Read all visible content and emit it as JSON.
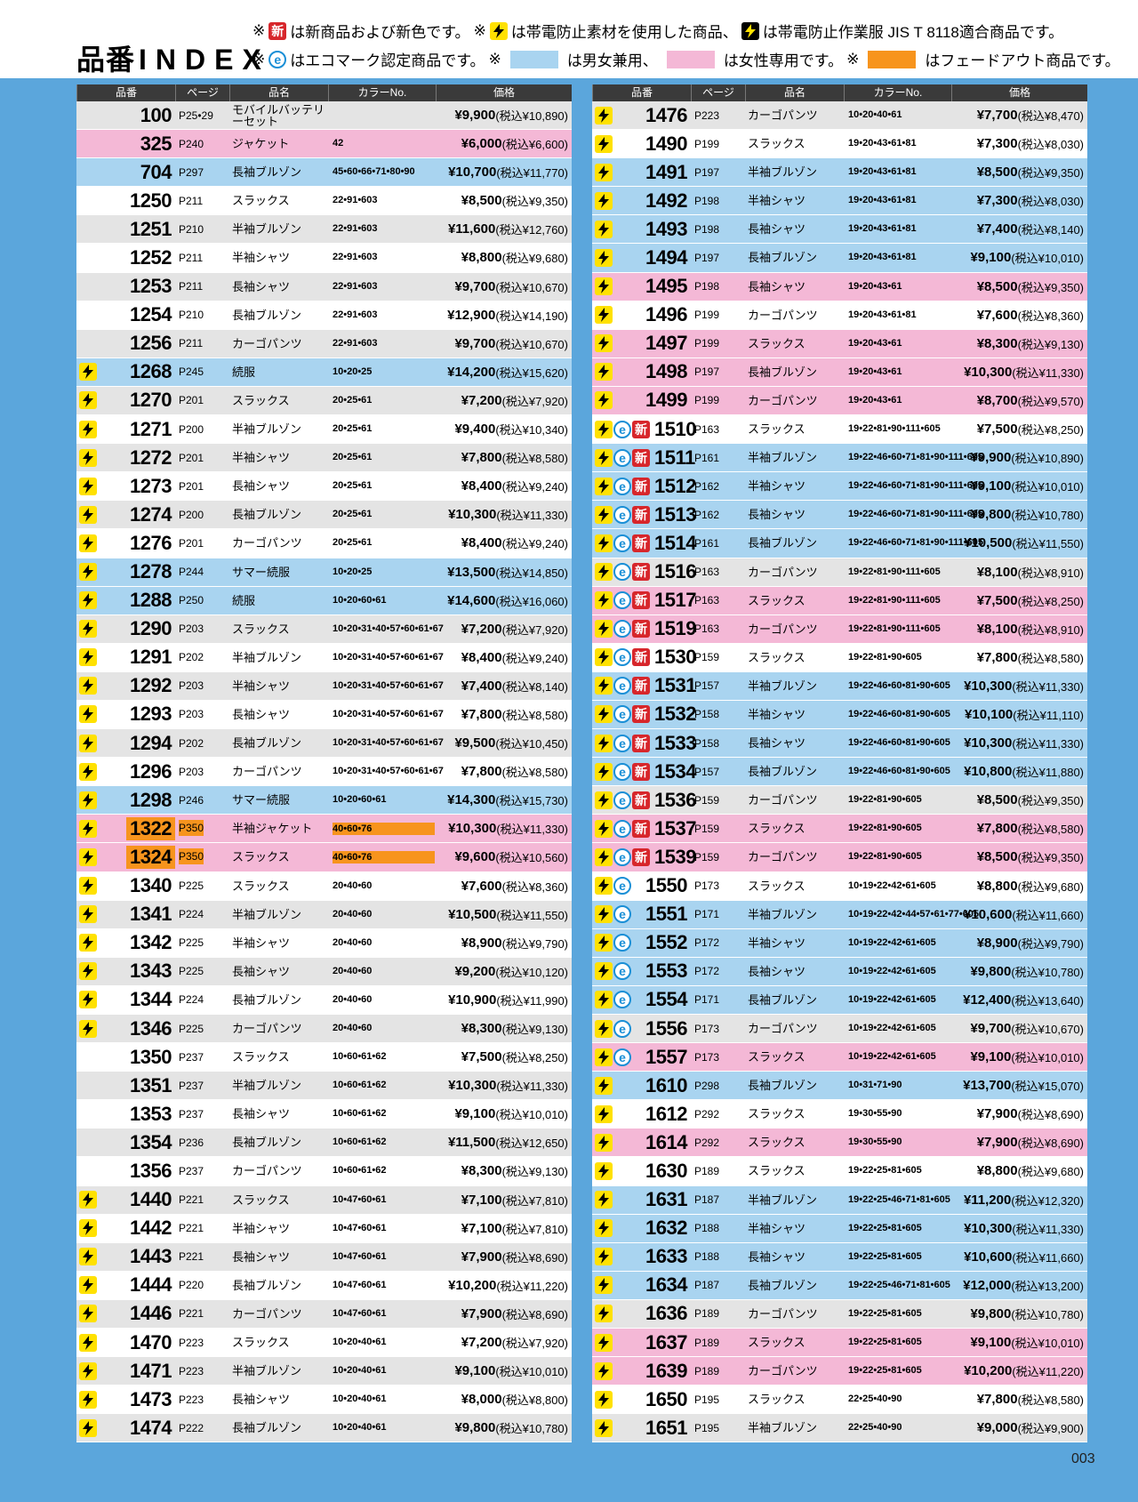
{
  "header": {
    "title_ja": "品番",
    "title_en": "INDEX",
    "new_mark": "新",
    "notes1": [
      "※",
      "は新商品および新色です。",
      "※",
      "は帯電防止素材を使用した商品、",
      "は帯電防止作業服 JIS T 8118適合商品です。"
    ],
    "notes2": [
      "※",
      "はエコマーク認定商品です。",
      "※",
      "は男女兼用、",
      "は女性専用です。",
      "※",
      "はフェードアウト商品です。"
    ]
  },
  "columns": [
    "品番",
    "ページ",
    "品名",
    "カラーNo.",
    "価格"
  ],
  "table_left": {
    "rows": [
      [
        "100",
        "P25•29",
        "モバイルバッテリーセット",
        null,
        "¥9,900",
        "(税込¥10,890)",
        "plain",
        ""
      ],
      [
        "325",
        "P240",
        "ジャケット",
        "42",
        "¥6,000",
        "(税込¥6,600)",
        "pink",
        ""
      ],
      [
        "704",
        "P297",
        "長袖ブルゾン",
        "45•60•66•71•80•90",
        "¥10,700",
        "(税込¥11,770)",
        "blue",
        ""
      ],
      [
        "1250",
        "P211",
        "スラックス",
        "22•91•603",
        "¥8,500",
        "(税込¥9,350)",
        "plain",
        ""
      ],
      [
        "1251",
        "P210",
        "半袖ブルゾン",
        "22•91•603",
        "¥11,600",
        "(税込¥12,760)",
        "plain",
        ""
      ],
      [
        "1252",
        "P211",
        "半袖シャツ",
        "22•91•603",
        "¥8,800",
        "(税込¥9,680)",
        "plain",
        ""
      ],
      [
        "1253",
        "P211",
        "長袖シャツ",
        "22•91•603",
        "¥9,700",
        "(税込¥10,670)",
        "plain",
        ""
      ],
      [
        "1254",
        "P210",
        "長袖ブルゾン",
        "22•91•603",
        "¥12,900",
        "(税込¥14,190)",
        "plain",
        ""
      ],
      [
        "1256",
        "P211",
        "カーゴパンツ",
        "22•91•603",
        "¥9,700",
        "(税込¥10,670)",
        "plain",
        ""
      ],
      [
        "1268",
        "P245",
        "続服",
        "10•20•25",
        "¥14,200",
        "(税込¥15,620)",
        "blue",
        "b"
      ],
      [
        "1270",
        "P201",
        "スラックス",
        "20•25•61",
        "¥7,200",
        "(税込¥7,920)",
        "plain",
        "b"
      ],
      [
        "1271",
        "P200",
        "半袖ブルゾン",
        "20•25•61",
        "¥9,400",
        "(税込¥10,340)",
        "plain",
        "b"
      ],
      [
        "1272",
        "P201",
        "半袖シャツ",
        "20•25•61",
        "¥7,800",
        "(税込¥8,580)",
        "plain",
        "b"
      ],
      [
        "1273",
        "P201",
        "長袖シャツ",
        "20•25•61",
        "¥8,400",
        "(税込¥9,240)",
        "plain",
        "b"
      ],
      [
        "1274",
        "P200",
        "長袖ブルゾン",
        "20•25•61",
        "¥10,300",
        "(税込¥11,330)",
        "plain",
        "b"
      ],
      [
        "1276",
        "P201",
        "カーゴパンツ",
        "20•25•61",
        "¥8,400",
        "(税込¥9,240)",
        "plain",
        "b"
      ],
      [
        "1278",
        "P244",
        "サマー続服",
        "10•20•25",
        "¥13,500",
        "(税込¥14,850)",
        "blue",
        "b"
      ],
      [
        "1288",
        "P250",
        "続服",
        "10•20•60•61",
        "¥14,600",
        "(税込¥16,060)",
        "blue",
        "b"
      ],
      [
        "1290",
        "P203",
        "スラックス",
        "10•20•31•40•57•60•61•67",
        "¥7,200",
        "(税込¥7,920)",
        "plain",
        "b"
      ],
      [
        "1291",
        "P202",
        "半袖ブルゾン",
        "10•20•31•40•57•60•61•67",
        "¥8,400",
        "(税込¥9,240)",
        "plain",
        "b"
      ],
      [
        "1292",
        "P203",
        "半袖シャツ",
        "10•20•31•40•57•60•61•67",
        "¥7,400",
        "(税込¥8,140)",
        "plain",
        "b"
      ],
      [
        "1293",
        "P203",
        "長袖シャツ",
        "10•20•31•40•57•60•61•67",
        "¥7,800",
        "(税込¥8,580)",
        "plain",
        "b"
      ],
      [
        "1294",
        "P202",
        "長袖ブルゾン",
        "10•20•31•40•57•60•61•67",
        "¥9,500",
        "(税込¥10,450)",
        "plain",
        "b"
      ],
      [
        "1296",
        "P203",
        "カーゴパンツ",
        "10•20•31•40•57•60•61•67",
        "¥7,800",
        "(税込¥8,580)",
        "plain",
        "b"
      ],
      [
        "1298",
        "P246",
        "サマー続服",
        "10•20•60•61",
        "¥14,300",
        "(税込¥15,730)",
        "blue",
        "b"
      ],
      [
        "1322",
        "P350",
        "半袖ジャケット",
        "40•60•76",
        "¥10,300",
        "(税込¥11,330)",
        "fade",
        "b"
      ],
      [
        "1324",
        "P350",
        "スラックス",
        "40•60•76",
        "¥9,600",
        "(税込¥10,560)",
        "fade",
        "b"
      ],
      [
        "1340",
        "P225",
        "スラックス",
        "20•40•60",
        "¥7,600",
        "(税込¥8,360)",
        "plain",
        "b"
      ],
      [
        "1341",
        "P224",
        "半袖ブルゾン",
        "20•40•60",
        "¥10,500",
        "(税込¥11,550)",
        "plain",
        "b"
      ],
      [
        "1342",
        "P225",
        "半袖シャツ",
        "20•40•60",
        "¥8,900",
        "(税込¥9,790)",
        "plain",
        "b"
      ],
      [
        "1343",
        "P225",
        "長袖シャツ",
        "20•40•60",
        "¥9,200",
        "(税込¥10,120)",
        "plain",
        "b"
      ],
      [
        "1344",
        "P224",
        "長袖ブルゾン",
        "20•40•60",
        "¥10,900",
        "(税込¥11,990)",
        "plain",
        "b"
      ],
      [
        "1346",
        "P225",
        "カーゴパンツ",
        "20•40•60",
        "¥8,300",
        "(税込¥9,130)",
        "plain",
        "b"
      ],
      [
        "1350",
        "P237",
        "スラックス",
        "10•60•61•62",
        "¥7,500",
        "(税込¥8,250)",
        "plain",
        ""
      ],
      [
        "1351",
        "P237",
        "半袖ブルゾン",
        "10•60•61•62",
        "¥10,300",
        "(税込¥11,330)",
        "plain",
        ""
      ],
      [
        "1353",
        "P237",
        "長袖シャツ",
        "10•60•61•62",
        "¥9,100",
        "(税込¥10,010)",
        "plain",
        ""
      ],
      [
        "1354",
        "P236",
        "長袖ブルゾン",
        "10•60•61•62",
        "¥11,500",
        "(税込¥12,650)",
        "plain",
        ""
      ],
      [
        "1356",
        "P237",
        "カーゴパンツ",
        "10•60•61•62",
        "¥8,300",
        "(税込¥9,130)",
        "plain",
        ""
      ],
      [
        "1440",
        "P221",
        "スラックス",
        "10•47•60•61",
        "¥7,100",
        "(税込¥7,810)",
        "plain",
        "b"
      ],
      [
        "1442",
        "P221",
        "半袖シャツ",
        "10•47•60•61",
        "¥7,100",
        "(税込¥7,810)",
        "plain",
        "b"
      ],
      [
        "1443",
        "P221",
        "長袖シャツ",
        "10•47•60•61",
        "¥7,900",
        "(税込¥8,690)",
        "plain",
        "b"
      ],
      [
        "1444",
        "P220",
        "長袖ブルゾン",
        "10•47•60•61",
        "¥10,200",
        "(税込¥11,220)",
        "plain",
        "b"
      ],
      [
        "1446",
        "P221",
        "カーゴパンツ",
        "10•47•60•61",
        "¥7,900",
        "(税込¥8,690)",
        "plain",
        "b"
      ],
      [
        "1470",
        "P223",
        "スラックス",
        "10•20•40•61",
        "¥7,200",
        "(税込¥7,920)",
        "plain",
        "b"
      ],
      [
        "1471",
        "P223",
        "半袖ブルゾン",
        "10•20•40•61",
        "¥9,100",
        "(税込¥10,010)",
        "plain",
        "b"
      ],
      [
        "1473",
        "P223",
        "長袖シャツ",
        "10•20•40•61",
        "¥8,000",
        "(税込¥8,800)",
        "plain",
        "b"
      ],
      [
        "1474",
        "P222",
        "長袖ブルゾン",
        "10•20•40•61",
        "¥9,800",
        "(税込¥10,780)",
        "plain",
        "b"
      ]
    ]
  },
  "table_right": {
    "rows": [
      [
        "1476",
        "P223",
        "カーゴパンツ",
        "10•20•40•61",
        "¥7,700",
        "(税込¥8,470)",
        "plain",
        "b"
      ],
      [
        "1490",
        "P199",
        "スラックス",
        "19•20•43•61•81",
        "¥7,300",
        "(税込¥8,030)",
        "plain",
        "b"
      ],
      [
        "1491",
        "P197",
        "半袖ブルゾン",
        "19•20•43•61•81",
        "¥8,500",
        "(税込¥9,350)",
        "blue",
        "b"
      ],
      [
        "1492",
        "P198",
        "半袖シャツ",
        "19•20•43•61•81",
        "¥7,300",
        "(税込¥8,030)",
        "blue",
        "b"
      ],
      [
        "1493",
        "P198",
        "長袖シャツ",
        "19•20•43•61•81",
        "¥7,400",
        "(税込¥8,140)",
        "blue",
        "b"
      ],
      [
        "1494",
        "P197",
        "長袖ブルゾン",
        "19•20•43•61•81",
        "¥9,100",
        "(税込¥10,010)",
        "blue",
        "b"
      ],
      [
        "1495",
        "P198",
        "長袖シャツ",
        "19•20•43•61",
        "¥8,500",
        "(税込¥9,350)",
        "pink",
        "b"
      ],
      [
        "1496",
        "P199",
        "カーゴパンツ",
        "19•20•43•61•81",
        "¥7,600",
        "(税込¥8,360)",
        "plain",
        "b"
      ],
      [
        "1497",
        "P199",
        "スラックス",
        "19•20•43•61",
        "¥8,300",
        "(税込¥9,130)",
        "pink",
        "b"
      ],
      [
        "1498",
        "P197",
        "長袖ブルゾン",
        "19•20•43•61",
        "¥10,300",
        "(税込¥11,330)",
        "pink",
        "b"
      ],
      [
        "1499",
        "P199",
        "カーゴパンツ",
        "19•20•43•61",
        "¥8,700",
        "(税込¥9,570)",
        "pink",
        "b"
      ],
      [
        "1510",
        "P163",
        "スラックス",
        "19•22•81•90•111•605",
        "¥7,500",
        "(税込¥8,250)",
        "plain",
        "ben"
      ],
      [
        "1511",
        "P161",
        "半袖ブルゾン",
        "19•22•46•60•71•81•90•111•605",
        "¥9,900",
        "(税込¥10,890)",
        "blue",
        "ben"
      ],
      [
        "1512",
        "P162",
        "半袖シャツ",
        "19•22•46•60•71•81•90•111•605",
        "¥9,100",
        "(税込¥10,010)",
        "blue",
        "ben"
      ],
      [
        "1513",
        "P162",
        "長袖シャツ",
        "19•22•46•60•71•81•90•111•605",
        "¥9,800",
        "(税込¥10,780)",
        "blue",
        "ben"
      ],
      [
        "1514",
        "P161",
        "長袖ブルゾン",
        "19•22•46•60•71•81•90•111•605",
        "¥10,500",
        "(税込¥11,550)",
        "blue",
        "ben"
      ],
      [
        "1516",
        "P163",
        "カーゴパンツ",
        "19•22•81•90•111•605",
        "¥8,100",
        "(税込¥8,910)",
        "plain",
        "ben"
      ],
      [
        "1517",
        "P163",
        "スラックス",
        "19•22•81•90•111•605",
        "¥7,500",
        "(税込¥8,250)",
        "pink",
        "ben"
      ],
      [
        "1519",
        "P163",
        "カーゴパンツ",
        "19•22•81•90•111•605",
        "¥8,100",
        "(税込¥8,910)",
        "pink",
        "ben"
      ],
      [
        "1530",
        "P159",
        "スラックス",
        "19•22•81•90•605",
        "¥7,800",
        "(税込¥8,580)",
        "plain",
        "ben"
      ],
      [
        "1531",
        "P157",
        "半袖ブルゾン",
        "19•22•46•60•81•90•605",
        "¥10,300",
        "(税込¥11,330)",
        "blue",
        "ben"
      ],
      [
        "1532",
        "P158",
        "半袖シャツ",
        "19•22•46•60•81•90•605",
        "¥10,100",
        "(税込¥11,110)",
        "blue",
        "ben"
      ],
      [
        "1533",
        "P158",
        "長袖シャツ",
        "19•22•46•60•81•90•605",
        "¥10,300",
        "(税込¥11,330)",
        "blue",
        "ben"
      ],
      [
        "1534",
        "P157",
        "長袖ブルゾン",
        "19•22•46•60•81•90•605",
        "¥10,800",
        "(税込¥11,880)",
        "blue",
        "ben"
      ],
      [
        "1536",
        "P159",
        "カーゴパンツ",
        "19•22•81•90•605",
        "¥8,500",
        "(税込¥9,350)",
        "plain",
        "ben"
      ],
      [
        "1537",
        "P159",
        "スラックス",
        "19•22•81•90•605",
        "¥7,800",
        "(税込¥8,580)",
        "pink",
        "ben"
      ],
      [
        "1539",
        "P159",
        "カーゴパンツ",
        "19•22•81•90•605",
        "¥8,500",
        "(税込¥9,350)",
        "pink",
        "ben"
      ],
      [
        "1550",
        "P173",
        "スラックス",
        "10•19•22•42•61•605",
        "¥8,800",
        "(税込¥9,680)",
        "plain",
        "be"
      ],
      [
        "1551",
        "P171",
        "半袖ブルゾン",
        "10•19•22•42•44•57•61•77•605",
        "¥10,600",
        "(税込¥11,660)",
        "blue",
        "be"
      ],
      [
        "1552",
        "P172",
        "半袖シャツ",
        "10•19•22•42•61•605",
        "¥8,900",
        "(税込¥9,790)",
        "blue",
        "be"
      ],
      [
        "1553",
        "P172",
        "長袖シャツ",
        "10•19•22•42•61•605",
        "¥9,800",
        "(税込¥10,780)",
        "blue",
        "be"
      ],
      [
        "1554",
        "P171",
        "長袖ブルゾン",
        "10•19•22•42•61•605",
        "¥12,400",
        "(税込¥13,640)",
        "blue",
        "be"
      ],
      [
        "1556",
        "P173",
        "カーゴパンツ",
        "10•19•22•42•61•605",
        "¥9,700",
        "(税込¥10,670)",
        "plain",
        "be"
      ],
      [
        "1557",
        "P173",
        "スラックス",
        "10•19•22•42•61•605",
        "¥9,100",
        "(税込¥10,010)",
        "pink",
        "be"
      ],
      [
        "1610",
        "P298",
        "長袖ブルゾン",
        "10•31•71•90",
        "¥13,700",
        "(税込¥15,070)",
        "blue",
        "b"
      ],
      [
        "1612",
        "P292",
        "スラックス",
        "19•30•55•90",
        "¥7,900",
        "(税込¥8,690)",
        "plain",
        "b"
      ],
      [
        "1614",
        "P292",
        "スラックス",
        "19•30•55•90",
        "¥7,900",
        "(税込¥8,690)",
        "pink",
        "b"
      ],
      [
        "1630",
        "P189",
        "スラックス",
        "19•22•25•81•605",
        "¥8,800",
        "(税込¥9,680)",
        "plain",
        "b"
      ],
      [
        "1631",
        "P187",
        "半袖ブルゾン",
        "19•22•25•46•71•81•605",
        "¥11,200",
        "(税込¥12,320)",
        "blue",
        "b"
      ],
      [
        "1632",
        "P188",
        "半袖シャツ",
        "19•22•25•81•605",
        "¥10,300",
        "(税込¥11,330)",
        "blue",
        "b"
      ],
      [
        "1633",
        "P188",
        "長袖シャツ",
        "19•22•25•81•605",
        "¥10,600",
        "(税込¥11,660)",
        "blue",
        "b"
      ],
      [
        "1634",
        "P187",
        "長袖ブルゾン",
        "19•22•25•46•71•81•605",
        "¥12,000",
        "(税込¥13,200)",
        "blue",
        "b"
      ],
      [
        "1636",
        "P189",
        "カーゴパンツ",
        "19•22•25•81•605",
        "¥9,800",
        "(税込¥10,780)",
        "plain",
        "b"
      ],
      [
        "1637",
        "P189",
        "スラックス",
        "19•22•25•81•605",
        "¥9,100",
        "(税込¥10,010)",
        "pink",
        "b"
      ],
      [
        "1639",
        "P189",
        "カーゴパンツ",
        "19•22•25•81•605",
        "¥10,200",
        "(税込¥11,220)",
        "pink",
        "b"
      ],
      [
        "1650",
        "P195",
        "スラックス",
        "22•25•40•90",
        "¥7,800",
        "(税込¥8,580)",
        "plain",
        "b"
      ],
      [
        "1651",
        "P195",
        "半袖ブルゾン",
        "22•25•40•90",
        "¥9,000",
        "(税込¥9,900)",
        "plain",
        "b"
      ]
    ]
  },
  "page_number": "003"
}
